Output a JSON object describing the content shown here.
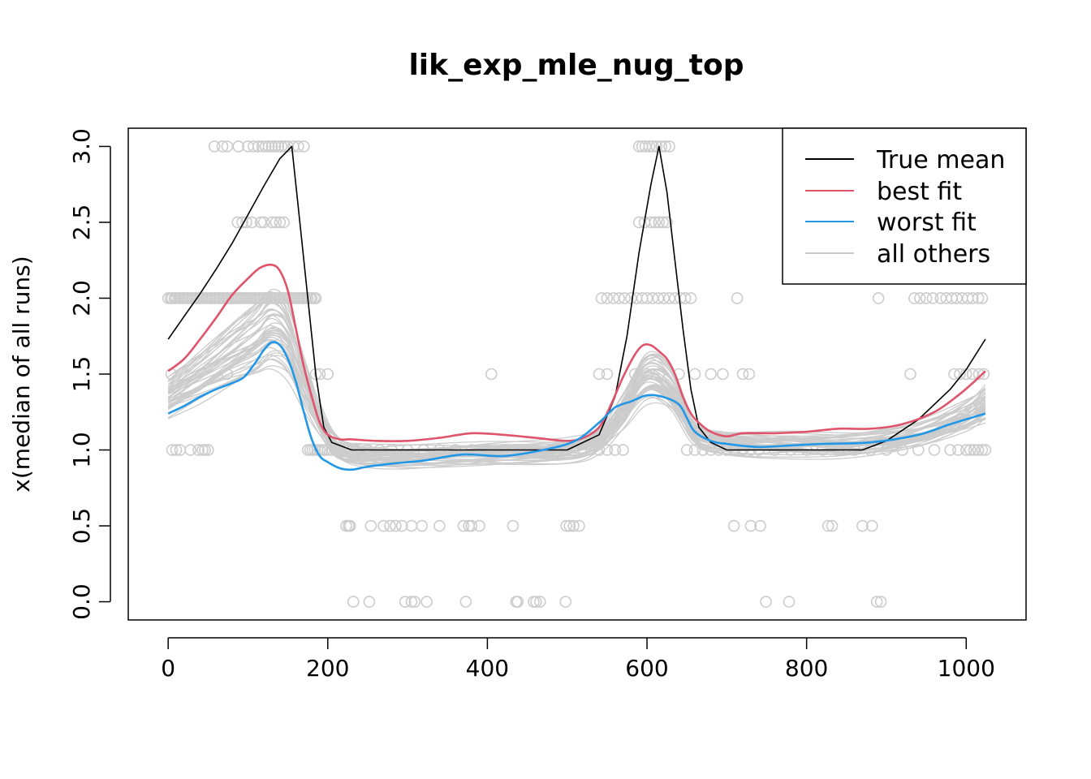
{
  "chart_data": {
    "type": "line",
    "title": "lik_exp_mle_nug_top",
    "xlabel": "",
    "ylabel": "x(median of all runs)",
    "xlim": [
      -50,
      1075
    ],
    "ylim": [
      -0.12,
      3.12
    ],
    "x_ticks": [
      "0",
      "200",
      "400",
      "600",
      "800",
      "1000"
    ],
    "y_ticks": [
      "0.0",
      "0.5",
      "1.0",
      "1.5",
      "2.0",
      "2.5",
      "3.0"
    ],
    "legend_position": "top-right",
    "colors": {
      "true_mean": "#000000",
      "best": "#DF536B",
      "worst": "#2297E6",
      "others": "#CCCCCC",
      "points": "#CCCCCC"
    },
    "legend": [
      {
        "label": "True mean",
        "color": "#000000"
      },
      {
        "label": "best fit",
        "color": "#DF536B"
      },
      {
        "label": "worst fit",
        "color": "#2297E6"
      },
      {
        "label": "all others",
        "color": "#CCCCCC"
      }
    ],
    "series": [
      {
        "name": "True mean",
        "color": "#000000",
        "x": [
          0,
          20,
          40,
          60,
          80,
          100,
          120,
          140,
          155,
          165,
          175,
          185,
          195,
          205,
          230,
          300,
          400,
          500,
          540,
          560,
          575,
          590,
          605,
          615,
          625,
          635,
          645,
          655,
          665,
          680,
          700,
          800,
          870,
          900,
          940,
          980,
          1000,
          1024
        ],
        "y": [
          1.73,
          1.88,
          2.03,
          2.19,
          2.36,
          2.55,
          2.74,
          2.92,
          3.0,
          2.5,
          2.0,
          1.5,
          1.15,
          1.05,
          1.0,
          1.0,
          1.0,
          1.0,
          1.1,
          1.35,
          1.75,
          2.3,
          2.75,
          3.0,
          2.7,
          2.25,
          1.8,
          1.4,
          1.15,
          1.05,
          1.0,
          1.0,
          1.0,
          1.06,
          1.2,
          1.4,
          1.53,
          1.73
        ]
      },
      {
        "name": "best fit",
        "color": "#DF536B",
        "x": [
          0,
          20,
          40,
          60,
          80,
          100,
          115,
          130,
          140,
          150,
          160,
          170,
          180,
          190,
          200,
          215,
          230,
          260,
          300,
          340,
          380,
          420,
          460,
          500,
          520,
          540,
          555,
          570,
          585,
          595,
          605,
          615,
          625,
          635,
          645,
          655,
          665,
          680,
          700,
          720,
          760,
          800,
          840,
          880,
          920,
          960,
          990,
          1010,
          1024
        ],
        "y": [
          1.52,
          1.6,
          1.73,
          1.87,
          2.02,
          2.13,
          2.2,
          2.22,
          2.18,
          2.05,
          1.8,
          1.55,
          1.35,
          1.18,
          1.1,
          1.07,
          1.07,
          1.06,
          1.06,
          1.08,
          1.11,
          1.1,
          1.08,
          1.06,
          1.08,
          1.15,
          1.3,
          1.48,
          1.63,
          1.69,
          1.69,
          1.65,
          1.6,
          1.5,
          1.35,
          1.24,
          1.18,
          1.12,
          1.09,
          1.11,
          1.11,
          1.12,
          1.14,
          1.14,
          1.17,
          1.25,
          1.36,
          1.45,
          1.52
        ]
      },
      {
        "name": "worst fit",
        "color": "#2297E6",
        "x": [
          0,
          20,
          40,
          60,
          80,
          95,
          110,
          120,
          130,
          140,
          150,
          160,
          170,
          180,
          190,
          200,
          215,
          230,
          250,
          280,
          320,
          370,
          420,
          470,
          510,
          540,
          560,
          580,
          600,
          620,
          640,
          650,
          660,
          680,
          700,
          740,
          780,
          820,
          880,
          940,
          980,
          1024
        ],
        "y": [
          1.24,
          1.29,
          1.35,
          1.4,
          1.44,
          1.48,
          1.58,
          1.66,
          1.71,
          1.69,
          1.6,
          1.45,
          1.25,
          1.07,
          0.96,
          0.92,
          0.88,
          0.87,
          0.89,
          0.91,
          0.93,
          0.97,
          0.96,
          1.0,
          1.06,
          1.18,
          1.28,
          1.32,
          1.36,
          1.35,
          1.3,
          1.21,
          1.12,
          1.06,
          1.04,
          1.02,
          1.03,
          1.04,
          1.05,
          1.1,
          1.17,
          1.24
        ]
      }
    ],
    "others": {
      "count": 45,
      "x": [
        0,
        40,
        80,
        110,
        130,
        150,
        170,
        190,
        210,
        240,
        300,
        400,
        500,
        540,
        570,
        600,
        630,
        660,
        700,
        780,
        860,
        940,
        1000,
        1024
      ],
      "y": [
        1.35,
        1.48,
        1.62,
        1.72,
        1.8,
        1.72,
        1.45,
        1.2,
        1.02,
        0.97,
        0.96,
        0.98,
        1.0,
        1.07,
        1.25,
        1.47,
        1.4,
        1.12,
        1.05,
        1.04,
        1.04,
        1.1,
        1.22,
        1.3
      ]
    },
    "points": [
      [
        0,
        2
      ],
      [
        3,
        2
      ],
      [
        5,
        2
      ],
      [
        8,
        2
      ],
      [
        10,
        2
      ],
      [
        13,
        2
      ],
      [
        15,
        2
      ],
      [
        18,
        2
      ],
      [
        20,
        2
      ],
      [
        23,
        2
      ],
      [
        25,
        2
      ],
      [
        28,
        2
      ],
      [
        30,
        2
      ],
      [
        33,
        2
      ],
      [
        35,
        2
      ],
      [
        38,
        2
      ],
      [
        40,
        2
      ],
      [
        43,
        2
      ],
      [
        45,
        2
      ],
      [
        48,
        2
      ],
      [
        50,
        2
      ],
      [
        53,
        2
      ],
      [
        55,
        2
      ],
      [
        58,
        2
      ],
      [
        60,
        2
      ],
      [
        63,
        2
      ],
      [
        65,
        2
      ],
      [
        68,
        2
      ],
      [
        70,
        2
      ],
      [
        73,
        2
      ],
      [
        75,
        2
      ],
      [
        78,
        2
      ],
      [
        80,
        2
      ],
      [
        83,
        2
      ],
      [
        85,
        2
      ],
      [
        88,
        2
      ],
      [
        90,
        2
      ],
      [
        93,
        2
      ],
      [
        95,
        2
      ],
      [
        98,
        2
      ],
      [
        100,
        2
      ],
      [
        103,
        2
      ],
      [
        105,
        2
      ],
      [
        108,
        2
      ],
      [
        110,
        2
      ],
      [
        113,
        2
      ],
      [
        115,
        2
      ],
      [
        118,
        2
      ],
      [
        120,
        2
      ],
      [
        123,
        2
      ],
      [
        125,
        2
      ],
      [
        128,
        2
      ],
      [
        130,
        2
      ],
      [
        133,
        2
      ],
      [
        135,
        2
      ],
      [
        138,
        2
      ],
      [
        140,
        2
      ],
      [
        143,
        2
      ],
      [
        145,
        2
      ],
      [
        148,
        2
      ],
      [
        150,
        2
      ],
      [
        153,
        2
      ],
      [
        155,
        2
      ],
      [
        158,
        2
      ],
      [
        160,
        2
      ],
      [
        163,
        2
      ],
      [
        165,
        2
      ],
      [
        168,
        2
      ],
      [
        170,
        2
      ],
      [
        173,
        2
      ],
      [
        175,
        2
      ],
      [
        178,
        2
      ],
      [
        180,
        2
      ],
      [
        183,
        2
      ],
      [
        185,
        2
      ],
      [
        5,
        1
      ],
      [
        10,
        1
      ],
      [
        15,
        1
      ],
      [
        28,
        1
      ],
      [
        38,
        1
      ],
      [
        43,
        1
      ],
      [
        46,
        1
      ],
      [
        50,
        1
      ],
      [
        4,
        1.5
      ],
      [
        74,
        1.5
      ],
      [
        58,
        3
      ],
      [
        68,
        3
      ],
      [
        74,
        3
      ],
      [
        88,
        3
      ],
      [
        100,
        3
      ],
      [
        107,
        3
      ],
      [
        113,
        3
      ],
      [
        118,
        3
      ],
      [
        122,
        3
      ],
      [
        126,
        3
      ],
      [
        130,
        3
      ],
      [
        134,
        3
      ],
      [
        138,
        3
      ],
      [
        142,
        3
      ],
      [
        146,
        3
      ],
      [
        150,
        3
      ],
      [
        157,
        3
      ],
      [
        163,
        3
      ],
      [
        170,
        3
      ],
      [
        87,
        2.5
      ],
      [
        93,
        2.5
      ],
      [
        98,
        2.5
      ],
      [
        105,
        2.5
      ],
      [
        116,
        2.5
      ],
      [
        120,
        2.5
      ],
      [
        130,
        2.5
      ],
      [
        135,
        2.5
      ],
      [
        140,
        2.5
      ],
      [
        145,
        2.5
      ],
      [
        175,
        1
      ],
      [
        178,
        1
      ],
      [
        181,
        1
      ],
      [
        184,
        1
      ],
      [
        187,
        1
      ],
      [
        190,
        1
      ],
      [
        193,
        1
      ],
      [
        196,
        1
      ],
      [
        200,
        1
      ],
      [
        205,
        1
      ],
      [
        210,
        1
      ],
      [
        215,
        1
      ],
      [
        220,
        1
      ],
      [
        225,
        1
      ],
      [
        235,
        1
      ],
      [
        250,
        1
      ],
      [
        265,
        1
      ],
      [
        280,
        1
      ],
      [
        300,
        1
      ],
      [
        320,
        1
      ],
      [
        340,
        1
      ],
      [
        360,
        1
      ],
      [
        380,
        1
      ],
      [
        400,
        1
      ],
      [
        420,
        1
      ],
      [
        440,
        1
      ],
      [
        460,
        1
      ],
      [
        480,
        1
      ],
      [
        500,
        1
      ],
      [
        520,
        1
      ],
      [
        530,
        1
      ],
      [
        540,
        1
      ],
      [
        550,
        1
      ],
      [
        560,
        1
      ],
      [
        570,
        1
      ],
      [
        185,
        1.5
      ],
      [
        190,
        1.5
      ],
      [
        200,
        1.5
      ],
      [
        405,
        1.5
      ],
      [
        540,
        1.5
      ],
      [
        550,
        1.5
      ],
      [
        223,
        0.5
      ],
      [
        226,
        0.5
      ],
      [
        228,
        0.5
      ],
      [
        254,
        0.5
      ],
      [
        270,
        0.5
      ],
      [
        278,
        0.5
      ],
      [
        285,
        0.5
      ],
      [
        293,
        0.5
      ],
      [
        305,
        0.5
      ],
      [
        318,
        0.5
      ],
      [
        340,
        0.5
      ],
      [
        370,
        0.5
      ],
      [
        377,
        0.5
      ],
      [
        380,
        0.5
      ],
      [
        390,
        0.5
      ],
      [
        432,
        0.5
      ],
      [
        499,
        0.5
      ],
      [
        503,
        0.5
      ],
      [
        508,
        0.5
      ],
      [
        515,
        0.5
      ],
      [
        709,
        0.5
      ],
      [
        730,
        0.5
      ],
      [
        742,
        0.5
      ],
      [
        827,
        0.5
      ],
      [
        832,
        0.5
      ],
      [
        870,
        0.5
      ],
      [
        882,
        0.5
      ],
      [
        232,
        0
      ],
      [
        252,
        0
      ],
      [
        297,
        0
      ],
      [
        305,
        0
      ],
      [
        309,
        0
      ],
      [
        324,
        0
      ],
      [
        373,
        0
      ],
      [
        436,
        0
      ],
      [
        438,
        0
      ],
      [
        458,
        0
      ],
      [
        461,
        0
      ],
      [
        466,
        0
      ],
      [
        498,
        0
      ],
      [
        749,
        0
      ],
      [
        778,
        0
      ],
      [
        888,
        0
      ],
      [
        893,
        0
      ],
      [
        543,
        2
      ],
      [
        550,
        2
      ],
      [
        558,
        2
      ],
      [
        565,
        2
      ],
      [
        572,
        2
      ],
      [
        580,
        2
      ],
      [
        587,
        2
      ],
      [
        594,
        2
      ],
      [
        600,
        2
      ],
      [
        607,
        2
      ],
      [
        614,
        2
      ],
      [
        621,
        2
      ],
      [
        628,
        2
      ],
      [
        635,
        2
      ],
      [
        642,
        2
      ],
      [
        648,
        2
      ],
      [
        655,
        2
      ],
      [
        713,
        2
      ],
      [
        890,
        2
      ],
      [
        935,
        2
      ],
      [
        942,
        2
      ],
      [
        950,
        2
      ],
      [
        958,
        2
      ],
      [
        968,
        2
      ],
      [
        975,
        2
      ],
      [
        982,
        2
      ],
      [
        988,
        2
      ],
      [
        995,
        2
      ],
      [
        1002,
        2
      ],
      [
        1008,
        2
      ],
      [
        1015,
        2
      ],
      [
        1020,
        2
      ],
      [
        590,
        2.5
      ],
      [
        597,
        2.5
      ],
      [
        605,
        2.5
      ],
      [
        610,
        2.5
      ],
      [
        615,
        2.5
      ],
      [
        620,
        2.5
      ],
      [
        625,
        2.5
      ],
      [
        590,
        3
      ],
      [
        594,
        3
      ],
      [
        598,
        3
      ],
      [
        603,
        3
      ],
      [
        607,
        3
      ],
      [
        612,
        3
      ],
      [
        618,
        3
      ],
      [
        623,
        3
      ],
      [
        628,
        3
      ],
      [
        585,
        1.5
      ],
      [
        600,
        1.5
      ],
      [
        615,
        1.5
      ],
      [
        640,
        1.5
      ],
      [
        660,
        1.5
      ],
      [
        680,
        1.5
      ],
      [
        695,
        1.5
      ],
      [
        720,
        1.5
      ],
      [
        728,
        1.5
      ],
      [
        930,
        1.5
      ],
      [
        985,
        1.5
      ],
      [
        992,
        1.5
      ],
      [
        1000,
        1.5
      ],
      [
        1008,
        1.5
      ],
      [
        1016,
        1.5
      ],
      [
        1022,
        1.5
      ],
      [
        650,
        1
      ],
      [
        660,
        1
      ],
      [
        670,
        1
      ],
      [
        680,
        1
      ],
      [
        690,
        1
      ],
      [
        700,
        1
      ],
      [
        710,
        1
      ],
      [
        720,
        1
      ],
      [
        730,
        1
      ],
      [
        740,
        1
      ],
      [
        760,
        1
      ],
      [
        780,
        1
      ],
      [
        800,
        1
      ],
      [
        820,
        1
      ],
      [
        840,
        1
      ],
      [
        860,
        1
      ],
      [
        880,
        1
      ],
      [
        900,
        1
      ],
      [
        920,
        1
      ],
      [
        940,
        1
      ],
      [
        960,
        1
      ],
      [
        980,
        1
      ],
      [
        990,
        1
      ],
      [
        1000,
        1
      ],
      [
        1005,
        1
      ],
      [
        1010,
        1
      ],
      [
        1015,
        1
      ],
      [
        1020,
        1
      ],
      [
        1024,
        1
      ]
    ]
  }
}
